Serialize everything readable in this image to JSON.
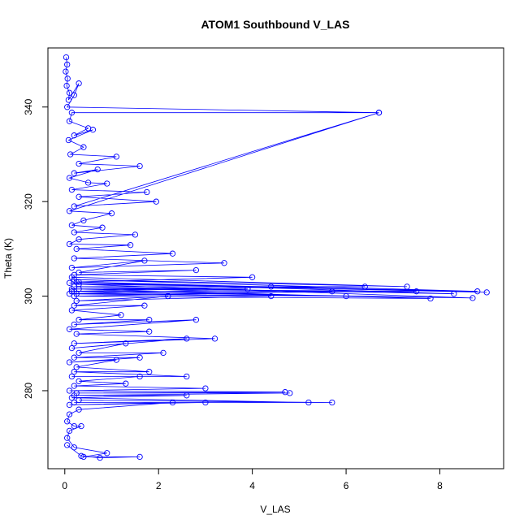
{
  "chart_data": {
    "type": "line",
    "title": "ATOM1 Southbound V_LAS",
    "xlabel": "V_LAS",
    "ylabel": "Theta (K)",
    "xlim": [
      -0.36,
      9.36
    ],
    "ylim": [
      263.5,
      352.5
    ],
    "xticks": [
      0,
      2,
      4,
      6,
      8
    ],
    "yticks": [
      280,
      300,
      320,
      340
    ],
    "grid": false,
    "legend": "none",
    "series_color": "#0000ff",
    "marker": "open-circle",
    "series": [
      {
        "points": [
          [
            0.03,
            350.5
          ],
          [
            0.05,
            349.0
          ],
          [
            0.02,
            347.5
          ],
          [
            0.06,
            346.0
          ],
          [
            0.04,
            344.5
          ],
          [
            0.1,
            343.0
          ],
          [
            0.08,
            341.5
          ],
          [
            0.3,
            345.0
          ],
          [
            0.2,
            342.5
          ],
          [
            0.05,
            340.0
          ],
          [
            6.7,
            338.8
          ],
          [
            0.15,
            338.8
          ],
          [
            0.1,
            337.0
          ],
          [
            0.5,
            335.5
          ],
          [
            0.2,
            334.0
          ],
          [
            0.6,
            335.2
          ],
          [
            0.08,
            333.0
          ],
          [
            0.4,
            331.5
          ],
          [
            0.12,
            330.0
          ],
          [
            1.1,
            329.5
          ],
          [
            0.3,
            328.0
          ],
          [
            1.6,
            327.5
          ],
          [
            0.2,
            326.0
          ],
          [
            0.7,
            326.8
          ],
          [
            0.1,
            325.0
          ],
          [
            0.5,
            324.0
          ],
          [
            0.9,
            323.8
          ],
          [
            0.15,
            322.5
          ],
          [
            1.75,
            322.0
          ],
          [
            0.3,
            321.0
          ],
          [
            1.95,
            320.0
          ],
          [
            0.2,
            319.0
          ],
          [
            6.7,
            338.8
          ],
          [
            0.1,
            318.0
          ],
          [
            1.0,
            317.5
          ],
          [
            0.4,
            316.0
          ],
          [
            0.15,
            315.0
          ],
          [
            0.8,
            314.5
          ],
          [
            0.2,
            313.5
          ],
          [
            1.5,
            313.0
          ],
          [
            0.3,
            312.0
          ],
          [
            0.1,
            311.0
          ],
          [
            1.4,
            310.8
          ],
          [
            0.25,
            310.0
          ],
          [
            2.3,
            309.0
          ],
          [
            0.2,
            308.0
          ],
          [
            3.4,
            307.0
          ],
          [
            0.15,
            306.0
          ],
          [
            1.7,
            307.5
          ],
          [
            0.3,
            305.0
          ],
          [
            2.8,
            305.5
          ],
          [
            0.2,
            304.5
          ],
          [
            4.0,
            304.0
          ],
          [
            0.25,
            303.0
          ],
          [
            0.15,
            304.0
          ],
          [
            7.3,
            302.0
          ],
          [
            0.2,
            303.5
          ],
          [
            8.8,
            301.0
          ],
          [
            0.1,
            302.8
          ],
          [
            9.0,
            300.8
          ],
          [
            0.3,
            303.0
          ],
          [
            8.3,
            300.5
          ],
          [
            0.2,
            302.0
          ],
          [
            6.4,
            302.0
          ],
          [
            0.15,
            301.5
          ],
          [
            7.5,
            301.0
          ],
          [
            0.25,
            300.5
          ],
          [
            6.0,
            300.0
          ],
          [
            0.2,
            301.0
          ],
          [
            8.7,
            299.6
          ],
          [
            0.3,
            302.5
          ],
          [
            4.4,
            302.0
          ],
          [
            0.15,
            301.0
          ],
          [
            5.7,
            301.0
          ],
          [
            0.2,
            300.0
          ],
          [
            7.8,
            299.5
          ],
          [
            0.3,
            301.5
          ],
          [
            3.9,
            301.5
          ],
          [
            0.1,
            300.5
          ],
          [
            4.4,
            300.0
          ],
          [
            0.25,
            299.0
          ],
          [
            2.2,
            300.0
          ],
          [
            0.2,
            298.0
          ],
          [
            1.7,
            298.0
          ],
          [
            0.15,
            297.0
          ],
          [
            1.2,
            296.0
          ],
          [
            0.3,
            295.0
          ],
          [
            1.8,
            295.0
          ],
          [
            0.2,
            294.0
          ],
          [
            2.8,
            295.0
          ],
          [
            0.1,
            293.0
          ],
          [
            1.8,
            292.5
          ],
          [
            0.25,
            292.0
          ],
          [
            3.2,
            291.0
          ],
          [
            0.2,
            290.0
          ],
          [
            2.6,
            291.0
          ],
          [
            0.15,
            289.0
          ],
          [
            1.3,
            290.0
          ],
          [
            0.3,
            288.0
          ],
          [
            2.1,
            288.0
          ],
          [
            0.2,
            287.0
          ],
          [
            1.6,
            287.0
          ],
          [
            0.1,
            286.0
          ],
          [
            1.1,
            286.5
          ],
          [
            0.25,
            285.0
          ],
          [
            1.8,
            284.0
          ],
          [
            0.2,
            284.0
          ],
          [
            2.6,
            283.0
          ],
          [
            0.15,
            283.0
          ],
          [
            1.6,
            283.0
          ],
          [
            0.3,
            282.0
          ],
          [
            1.3,
            281.5
          ],
          [
            0.2,
            281.0
          ],
          [
            3.0,
            280.5
          ],
          [
            0.1,
            280.0
          ],
          [
            4.7,
            279.7
          ],
          [
            0.25,
            279.5
          ],
          [
            4.8,
            279.5
          ],
          [
            0.2,
            279.0
          ],
          [
            2.6,
            279.0
          ],
          [
            0.15,
            278.5
          ],
          [
            5.2,
            277.5
          ],
          [
            0.3,
            278.0
          ],
          [
            5.7,
            277.5
          ],
          [
            0.2,
            277.5
          ],
          [
            3.0,
            277.5
          ],
          [
            0.1,
            277.0
          ],
          [
            2.3,
            277.5
          ],
          [
            0.3,
            276.0
          ],
          [
            0.1,
            275.0
          ],
          [
            0.05,
            273.5
          ],
          [
            0.2,
            272.5
          ],
          [
            0.35,
            272.5
          ],
          [
            0.1,
            271.5
          ],
          [
            0.05,
            270.0
          ],
          [
            0.2,
            268.0
          ],
          [
            0.9,
            266.8
          ],
          [
            0.4,
            266.0
          ],
          [
            1.6,
            266.0
          ],
          [
            0.75,
            265.8
          ],
          [
            0.35,
            266.2
          ],
          [
            0.05,
            268.5
          ]
        ]
      }
    ]
  }
}
